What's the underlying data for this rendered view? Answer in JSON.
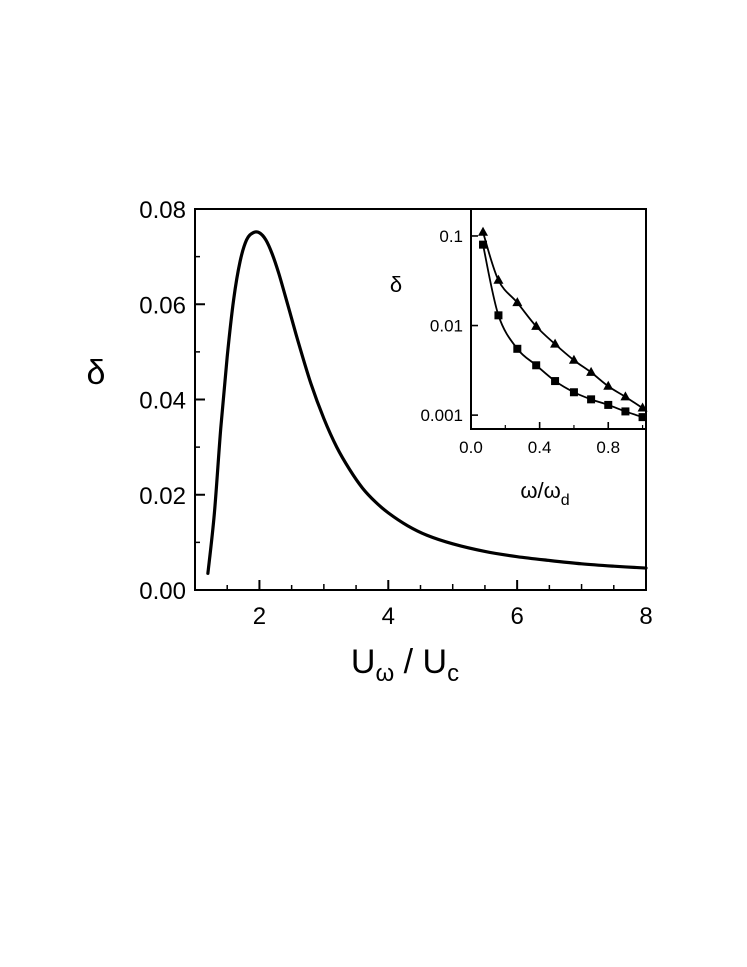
{
  "chart_data": [
    {
      "type": "line",
      "ylabel": "δ",
      "xlabel": {
        "base_left": "U",
        "sub_left": "ω",
        "separator": " / ",
        "base_right": "U",
        "sub_right": "c"
      },
      "xlim": [
        1.0,
        8.0
      ],
      "ylim": [
        0.0,
        0.08
      ],
      "x_ticks": [
        2,
        4,
        6,
        8
      ],
      "y_ticks": [
        0.0,
        0.02,
        0.04,
        0.06,
        0.08
      ],
      "x_tick_labels": [
        "2",
        "4",
        "6",
        "8"
      ],
      "y_tick_labels": [
        "0.00",
        "0.02",
        "0.04",
        "0.06",
        "0.08"
      ],
      "grid": false,
      "series": [
        {
          "x": [
            1.2,
            1.3,
            1.4,
            1.5,
            1.6,
            1.7,
            1.8,
            1.9,
            2.0,
            2.1,
            2.2,
            2.3,
            2.4,
            2.5,
            2.6,
            2.8,
            3.0,
            3.2,
            3.4,
            3.6,
            3.8,
            4.0,
            4.3,
            4.6,
            5.0,
            5.5,
            6.0,
            6.5,
            7.0,
            7.5,
            8.0
          ],
          "y": [
            0.0035,
            0.016,
            0.034,
            0.049,
            0.061,
            0.069,
            0.0735,
            0.075,
            0.075,
            0.0735,
            0.0705,
            0.0665,
            0.0618,
            0.057,
            0.0522,
            0.0433,
            0.036,
            0.03,
            0.0253,
            0.0214,
            0.0185,
            0.0162,
            0.0135,
            0.0115,
            0.0097,
            0.0081,
            0.007,
            0.0062,
            0.0055,
            0.005,
            0.0046
          ]
        }
      ]
    },
    {
      "type": "line",
      "ylabel": "δ",
      "xlabel": {
        "base": "ω/ω",
        "sub": "d"
      },
      "xlim": [
        0.0,
        1.02
      ],
      "ylim": [
        0.0007,
        0.2
      ],
      "yscale": "log",
      "x_ticks": [
        0.0,
        0.4,
        0.8
      ],
      "y_ticks": [
        0.001,
        0.01,
        0.1
      ],
      "x_tick_labels": [
        "0.0",
        "0.4",
        "0.8"
      ],
      "y_tick_labels": [
        "0.001",
        "0.01",
        "0.1"
      ],
      "grid": false,
      "series": [
        {
          "marker": "triangle",
          "x": [
            0.07,
            0.16,
            0.27,
            0.38,
            0.49,
            0.6,
            0.7,
            0.8,
            0.9,
            1.0
          ],
          "y": [
            0.11,
            0.032,
            0.018,
            0.0098,
            0.0062,
            0.0041,
            0.003,
            0.0021,
            0.0016,
            0.0012
          ]
        },
        {
          "marker": "square",
          "x": [
            0.07,
            0.16,
            0.27,
            0.38,
            0.49,
            0.6,
            0.7,
            0.8,
            0.9,
            1.0
          ],
          "y": [
            0.08,
            0.013,
            0.0055,
            0.0036,
            0.0024,
            0.0018,
            0.0015,
            0.0013,
            0.0011,
            0.00095
          ]
        }
      ]
    }
  ]
}
